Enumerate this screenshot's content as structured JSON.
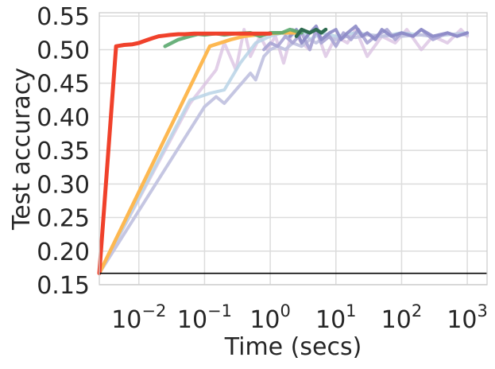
{
  "chart_data": {
    "type": "line",
    "xlabel": "Time (secs)",
    "ylabel": "Test accuracy",
    "xscale": "log",
    "xlim": [
      0.0025,
      2000
    ],
    "ylim": [
      0.15,
      0.555
    ],
    "grid": true,
    "legend": "none",
    "xticks": [
      {
        "value": 0.01,
        "base": "10",
        "exp": "−2"
      },
      {
        "value": 0.1,
        "base": "10",
        "exp": "−1"
      },
      {
        "value": 1,
        "base": "10",
        "exp": "0"
      },
      {
        "value": 10,
        "base": "10",
        "exp": "1"
      },
      {
        "value": 100,
        "base": "10",
        "exp": "2"
      },
      {
        "value": 1000,
        "base": "10",
        "exp": "3"
      }
    ],
    "yticks": [
      {
        "value": 0.15,
        "label": "0.15"
      },
      {
        "value": 0.2,
        "label": "0.20"
      },
      {
        "value": 0.25,
        "label": "0.25"
      },
      {
        "value": 0.3,
        "label": "0.30"
      },
      {
        "value": 0.35,
        "label": "0.35"
      },
      {
        "value": 0.4,
        "label": "0.40"
      },
      {
        "value": 0.45,
        "label": "0.45"
      },
      {
        "value": 0.5,
        "label": "0.50"
      },
      {
        "value": 0.55,
        "label": "0.55"
      }
    ],
    "hlines": [
      {
        "y": 0.167,
        "color": "#000000"
      }
    ],
    "series": [
      {
        "color": "#d8bfe0",
        "opacity": 0.75,
        "width": 4,
        "x": [
          0.0025,
          0.06,
          0.15,
          0.2,
          0.3,
          0.4,
          0.5,
          0.7,
          0.9,
          1.2,
          1.6,
          2.2,
          3,
          4,
          5,
          7,
          10,
          15,
          20,
          30,
          50,
          80,
          120,
          200,
          300,
          500,
          800,
          1000
        ],
        "y": [
          0.167,
          0.42,
          0.47,
          0.51,
          0.47,
          0.53,
          0.49,
          0.52,
          0.5,
          0.52,
          0.48,
          0.53,
          0.51,
          0.5,
          0.53,
          0.49,
          0.52,
          0.51,
          0.53,
          0.49,
          0.52,
          0.51,
          0.53,
          0.5,
          0.52,
          0.51,
          0.53,
          0.52
        ]
      },
      {
        "color": "#b8d4e6",
        "opacity": 0.85,
        "width": 4,
        "x": [
          0.0025,
          0.06,
          0.12,
          0.2,
          0.35,
          0.6,
          1.0,
          1.5,
          2.0,
          3.0,
          4.0,
          6.0,
          10,
          20,
          50,
          100,
          300,
          1000
        ],
        "y": [
          0.167,
          0.425,
          0.435,
          0.44,
          0.48,
          0.51,
          0.52,
          0.525,
          0.52,
          0.53,
          0.515,
          0.525,
          0.52,
          0.525,
          0.52,
          0.525,
          0.52,
          0.525
        ]
      },
      {
        "color": "#c2c3e0",
        "opacity": 0.95,
        "width": 4,
        "x": [
          0.0025,
          0.1,
          0.15,
          0.2,
          0.3,
          0.5,
          0.6,
          0.8,
          1.0,
          1.3,
          1.7,
          2.2,
          3.0,
          4.0,
          5.0,
          7.0,
          10,
          15,
          20,
          30,
          50,
          80,
          100,
          200,
          300,
          500,
          1000
        ],
        "y": [
          0.167,
          0.415,
          0.43,
          0.42,
          0.44,
          0.465,
          0.455,
          0.49,
          0.5,
          0.505,
          0.5,
          0.51,
          0.505,
          0.515,
          0.51,
          0.52,
          0.515,
          0.52,
          0.518,
          0.522,
          0.52,
          0.522,
          0.52,
          0.522,
          0.52,
          0.523,
          0.522
        ]
      },
      {
        "color": "#a8a4d4",
        "opacity": 0.9,
        "width": 4,
        "x": [
          0.8,
          1.0,
          1.3,
          1.7,
          2.2,
          3.0,
          4.0,
          5.0,
          6.0,
          8.0,
          10,
          13,
          17,
          22,
          30,
          40,
          60,
          80,
          100,
          150,
          200,
          300,
          500,
          700,
          1000
        ],
        "y": [
          0.5,
          0.51,
          0.505,
          0.52,
          0.51,
          0.525,
          0.5,
          0.53,
          0.51,
          0.52,
          0.505,
          0.525,
          0.515,
          0.53,
          0.51,
          0.52,
          0.53,
          0.515,
          0.525,
          0.52,
          0.53,
          0.515,
          0.525,
          0.52,
          0.525
        ]
      },
      {
        "color": "#8c8ac6",
        "opacity": 0.9,
        "width": 4,
        "x": [
          2.0,
          2.5,
          3.0,
          4.0,
          5.0,
          6.0,
          8.0,
          10,
          12,
          15,
          20,
          25,
          30,
          40,
          50,
          70,
          100,
          150,
          200,
          300,
          500,
          700,
          1000
        ],
        "y": [
          0.52,
          0.53,
          0.51,
          0.525,
          0.535,
          0.515,
          0.525,
          0.53,
          0.515,
          0.525,
          0.535,
          0.52,
          0.525,
          0.515,
          0.53,
          0.52,
          0.525,
          0.52,
          0.53,
          0.52,
          0.525,
          0.52,
          0.525
        ]
      },
      {
        "color": "#fdb851",
        "opacity": 1,
        "width": 4.5,
        "x": [
          0.0025,
          0.12,
          0.25,
          0.4,
          0.6,
          1.0,
          1.5,
          2.5
        ],
        "y": [
          0.167,
          0.505,
          0.515,
          0.52,
          0.522,
          0.524,
          0.525,
          0.525
        ]
      },
      {
        "color": "#5aa86e",
        "opacity": 0.9,
        "width": 4.5,
        "x": [
          0.025,
          0.04,
          0.06,
          0.08,
          0.1,
          0.15,
          0.2,
          0.3,
          0.5,
          0.7,
          1.0,
          1.5,
          2.0,
          3.0
        ],
        "y": [
          0.505,
          0.515,
          0.52,
          0.523,
          0.522,
          0.524,
          0.522,
          0.524,
          0.525,
          0.52,
          0.525,
          0.525,
          0.53,
          0.525
        ]
      },
      {
        "color": "#2e6b50",
        "opacity": 1,
        "width": 4.5,
        "x": [
          2.5,
          3.0,
          4.0,
          5.0,
          6.0,
          7.0
        ],
        "y": [
          0.52,
          0.53,
          0.525,
          0.53,
          0.525,
          0.53
        ]
      },
      {
        "color": "#f0412b",
        "opacity": 1,
        "width": 5,
        "x": [
          0.0025,
          0.0045,
          0.006,
          0.008,
          0.01,
          0.013,
          0.016,
          0.02,
          0.025,
          0.03,
          0.04,
          0.05,
          0.07,
          0.1,
          0.15,
          0.2,
          0.3,
          0.5,
          0.7,
          1.0
        ],
        "y": [
          0.167,
          0.505,
          0.507,
          0.508,
          0.51,
          0.514,
          0.517,
          0.52,
          0.521,
          0.522,
          0.523,
          0.523,
          0.524,
          0.524,
          0.524,
          0.524,
          0.524,
          0.524,
          0.524,
          0.524
        ]
      }
    ]
  }
}
